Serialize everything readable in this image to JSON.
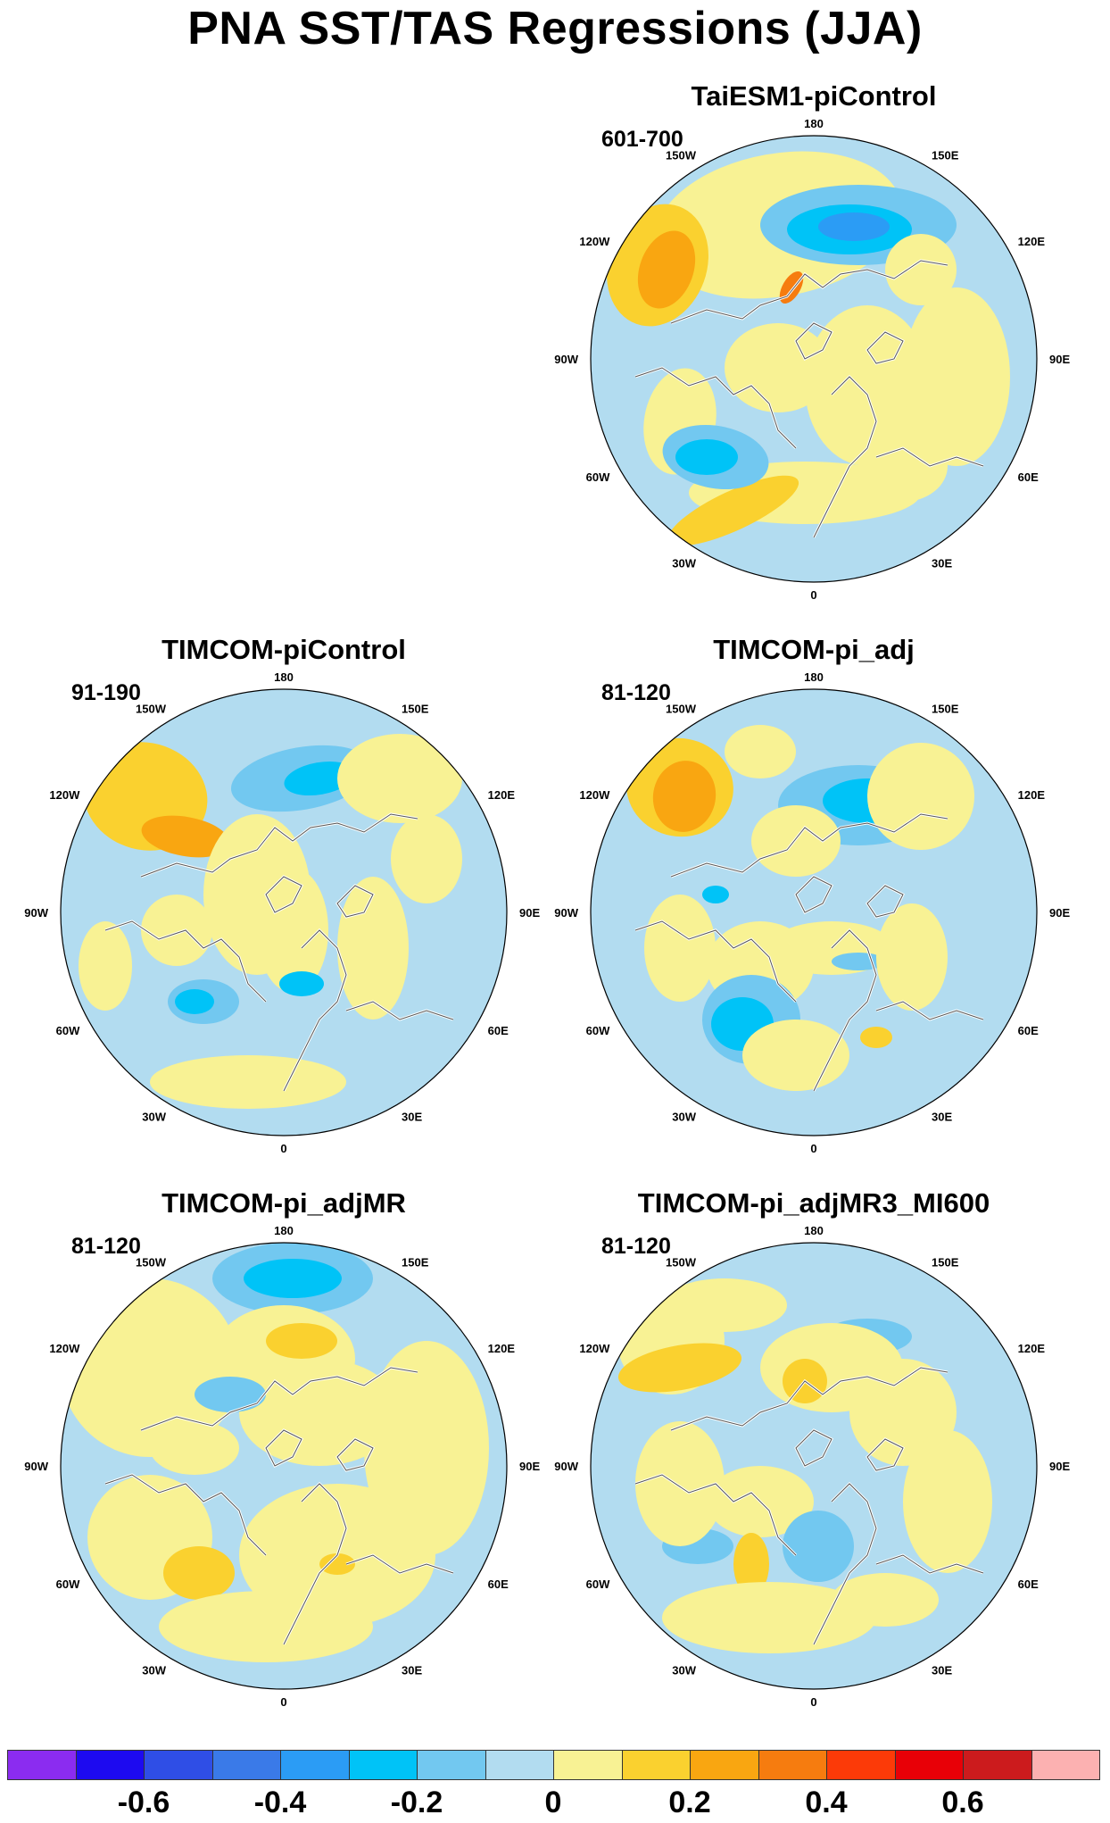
{
  "title": "PNA SST/TAS Regressions (JJA)",
  "panels": [
    {
      "title": "TaiESM1-piControl",
      "years": "601-700"
    },
    {
      "title": "TIMCOM-piControl",
      "years": "91-190"
    },
    {
      "title": "TIMCOM-pi_adj",
      "years": "81-120"
    },
    {
      "title": "TIMCOM-pi_adjMR",
      "years": "81-120"
    },
    {
      "title": "TIMCOM-pi_adjMR3_MI600",
      "years": "81-120"
    }
  ],
  "longitude_labels": {
    "top": "180",
    "top_left": "150W",
    "top_right": "150E",
    "upper_left": "120W",
    "upper_right": "120E",
    "left": "90W",
    "right": "90E",
    "lower_left": "60W",
    "lower_right": "60E",
    "bottom_left": "30W",
    "bottom_right": "30E",
    "bottom": "0"
  },
  "colorbar": {
    "colors": [
      "#8b2cf0",
      "#1d0af0",
      "#2f4ee6",
      "#3a7ae8",
      "#2b9cf5",
      "#00c3f7",
      "#72c8f0",
      "#b2dcf0",
      "#f8f294",
      "#fad12f",
      "#f9a611",
      "#f67c0f",
      "#fc3a08",
      "#e80007",
      "#cc1b1d",
      "#fcb1b1"
    ],
    "labels": [
      "-0.6",
      "-0.4",
      "-0.2",
      "0",
      "0.2",
      "0.4",
      "0.6"
    ]
  }
}
